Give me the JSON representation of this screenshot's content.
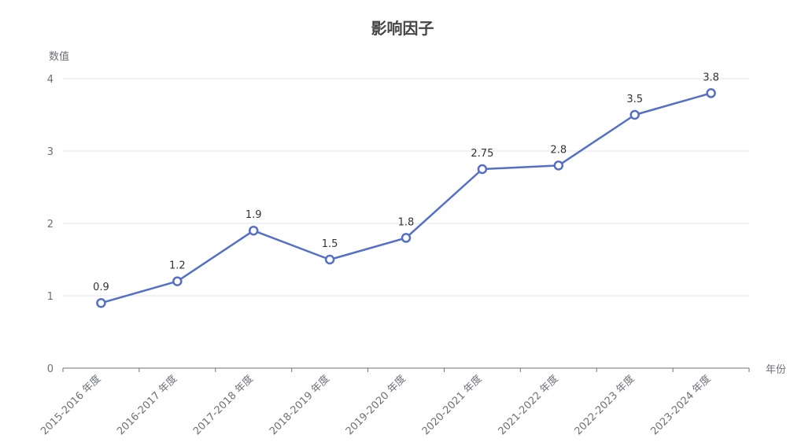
{
  "chart_data": {
    "type": "line",
    "title": "影响因子",
    "xlabel": "年份",
    "ylabel": "数值",
    "categories": [
      "2015-2016 年度",
      "2016-2017 年度",
      "2017-2018 年度",
      "2018-2019 年度",
      "2019-2020 年度",
      "2020-2021 年度",
      "2021-2022 年度",
      "2022-2023 年度",
      "2023-2024 年度"
    ],
    "values": [
      0.9,
      1.2,
      1.9,
      1.5,
      1.8,
      2.75,
      2.8,
      3.5,
      3.8
    ],
    "data_labels": [
      "0.9",
      "1.2",
      "1.9",
      "1.5",
      "1.8",
      "2.75",
      "2.8",
      "3.5",
      "3.8"
    ],
    "ylim": [
      0,
      4
    ],
    "yticks": [
      0,
      1,
      2,
      3,
      4
    ],
    "grid": true,
    "colors": {
      "line": "#5470c6",
      "grid": "#e0e6f1",
      "axis": "#6e7079"
    }
  }
}
